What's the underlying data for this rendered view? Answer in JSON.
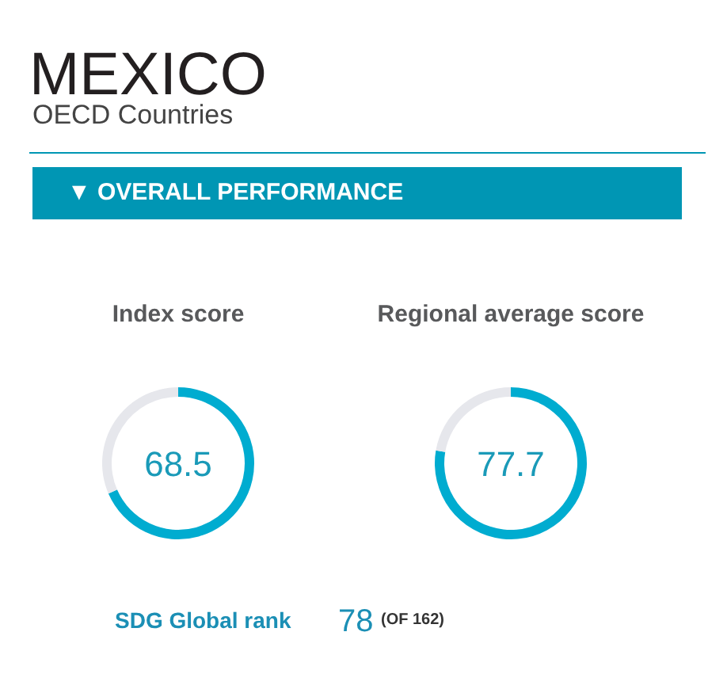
{
  "chart_data": [
    {
      "type": "other",
      "title": "MEXICO",
      "subtitle": "OECD Countries",
      "annotations": [
        "▼  OVERALL PERFORMANCE"
      ]
    },
    {
      "type": "donut",
      "title": "Index score",
      "categories": [
        null,
        null
      ],
      "values": [
        68.5,
        31.5
      ],
      "colors": [
        "#00acd0",
        "#e6e7ec"
      ],
      "value_labels": [
        "68.5",
        null
      ]
    },
    {
      "type": "donut",
      "title": "Regional average score",
      "categories": [
        null,
        null
      ],
      "values": [
        77.7,
        22.3
      ],
      "colors": [
        "#00acd0",
        "#e6e7ec"
      ],
      "value_labels": [
        "77.7",
        null
      ]
    },
    {
      "type": "other",
      "annotations": [
        "SDG Global rank",
        "78",
        "(OF 162)"
      ]
    }
  ]
}
